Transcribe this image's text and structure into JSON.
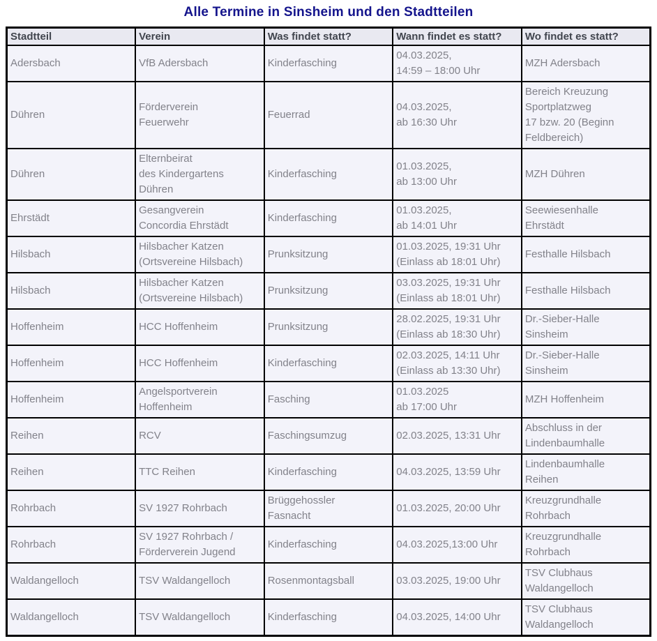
{
  "page": {
    "title": "Alle Termine in Sinsheim und den Stadtteilen"
  },
  "colors": {
    "title_text": "#14148c",
    "table_border": "#000000",
    "header_bg": "#e9e9f1",
    "header_text": "#41454e",
    "cell_bg": "#f3f3fa",
    "cell_text": "#82828a",
    "page_bg": "#ffffff"
  },
  "table": {
    "headers": [
      "Stadtteil",
      "Verein",
      "Was findet statt?",
      "Wann findet es statt?",
      "Wo findet es statt?"
    ],
    "rows": [
      [
        "Adersbach",
        "VfB Adersbach",
        "Kinderfasching",
        "04.03.2025,\n14:59 – 18:00 Uhr",
        "MZH Adersbach"
      ],
      [
        "Dühren",
        "Förderverein\nFeuerwehr",
        "Feuerrad",
        "04.03.2025,\nab 16:30 Uhr",
        "Bereich Kreuzung\nSportplatzweg\n17 bzw. 20 (Beginn\nFeldbereich)"
      ],
      [
        "Dühren",
        "Elternbeirat\ndes Kindergartens\nDühren",
        "Kinderfasching",
        "01.03.2025,\nab 13:00 Uhr",
        "MZH Dühren"
      ],
      [
        "Ehrstädt",
        "Gesangverein\nConcordia Ehrstädt",
        "Kinderfasching",
        "01.03.2025,\nab 14:01 Uhr",
        "Seewiesenhalle\nEhrstädt"
      ],
      [
        "Hilsbach",
        "Hilsbacher Katzen\n(Ortsvereine Hilsbach)",
        "Prunksitzung",
        "01.03.2025, 19:31 Uhr\n(Einlass ab 18:01 Uhr)",
        "Festhalle Hilsbach"
      ],
      [
        "Hilsbach",
        "Hilsbacher Katzen\n(Ortsvereine Hilsbach)",
        "Prunksitzung",
        "03.03.2025, 19:31 Uhr\n(Einlass ab 18:01 Uhr)",
        "Festhalle Hilsbach"
      ],
      [
        "Hoffenheim",
        "HCC Hoffenheim",
        "Prunksitzung",
        "28.02.2025, 19:31 Uhr\n(Einlass ab 18:30 Uhr)",
        "Dr.-Sieber-Halle\nSinsheim"
      ],
      [
        "Hoffenheim",
        "HCC Hoffenheim",
        "Kinderfasching",
        "02.03.2025, 14:11 Uhr\n(Einlass ab 13:30 Uhr)",
        "Dr.-Sieber-Halle\nSinsheim"
      ],
      [
        "Hoffenheim",
        "Angelsportverein\nHoffenheim",
        "Fasching",
        "01.03.2025\nab 17:00 Uhr",
        "MZH Hoffenheim"
      ],
      [
        "Reihen",
        "RCV",
        "Faschingsumzug",
        "02.03.2025, 13:31 Uhr",
        "Abschluss in der\nLindenbaumhalle"
      ],
      [
        "Reihen",
        "TTC Reihen",
        "Kinderfasching",
        "04.03.2025, 13:59 Uhr",
        "Lindenbaumhalle\nReihen"
      ],
      [
        "Rohrbach",
        "SV 1927 Rohrbach",
        "Brüggehossler\nFasnacht",
        "01.03.2025, 20:00 Uhr",
        "Kreuzgrundhalle\nRohrbach"
      ],
      [
        "Rohrbach",
        "SV 1927 Rohrbach /\nFörderverein Jugend",
        "Kinderfasching",
        "04.03.2025,13:00 Uhr",
        "Kreuzgrundhalle\nRohrbach"
      ],
      [
        "Waldangelloch",
        "TSV Waldangelloch",
        "Rosenmontagsball",
        "03.03.2025, 19:00 Uhr",
        "TSV Clubhaus\nWaldangelloch"
      ],
      [
        "Waldangelloch",
        "TSV Waldangelloch",
        "Kinderfasching",
        "04.03.2025, 14:00 Uhr",
        "TSV Clubhaus\nWaldangelloch"
      ]
    ]
  }
}
